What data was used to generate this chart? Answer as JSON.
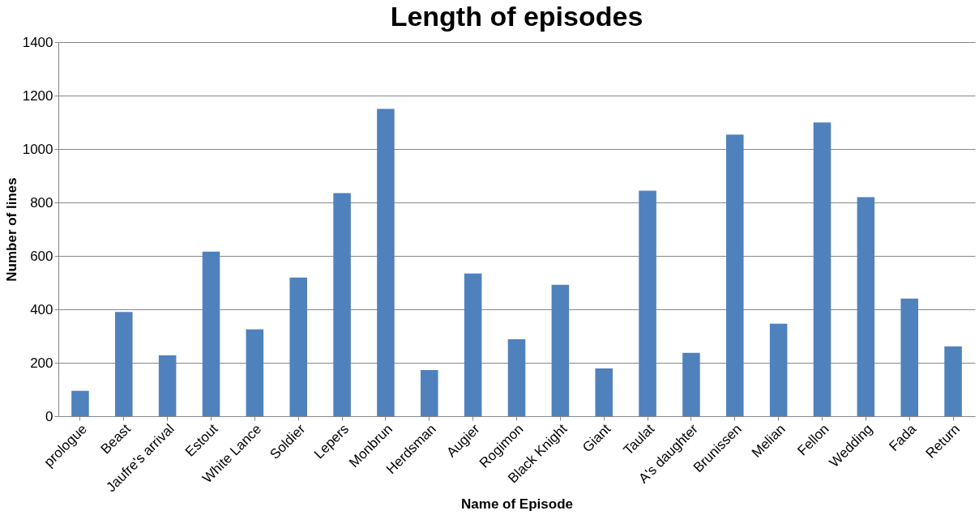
{
  "chart_data": {
    "type": "bar",
    "title": "Length of episodes",
    "xlabel": "Name of Episode",
    "ylabel": "Number of lines",
    "categories": [
      "prologue",
      "Beast",
      "Jaufre's arrival",
      "Estout",
      "White Lance",
      "Soldier",
      "Lepers",
      "Monbrun",
      "Herdsman",
      "Augier",
      "Rogimon",
      "Black Knight",
      "Giant",
      "Taulat",
      "A's daughter",
      "Brunissen",
      "Melian",
      "Fellon",
      "Wedding",
      "Fada",
      "Return"
    ],
    "values": [
      95,
      390,
      228,
      616,
      325,
      519,
      835,
      1150,
      173,
      534,
      288,
      492,
      179,
      844,
      237,
      1054,
      346,
      1099,
      820,
      440,
      261
    ],
    "color": "#4f81bd",
    "ylim": [
      0,
      1400
    ],
    "yticks": [
      0,
      200,
      400,
      600,
      800,
      1000,
      1200,
      1400
    ],
    "grid": "y"
  }
}
